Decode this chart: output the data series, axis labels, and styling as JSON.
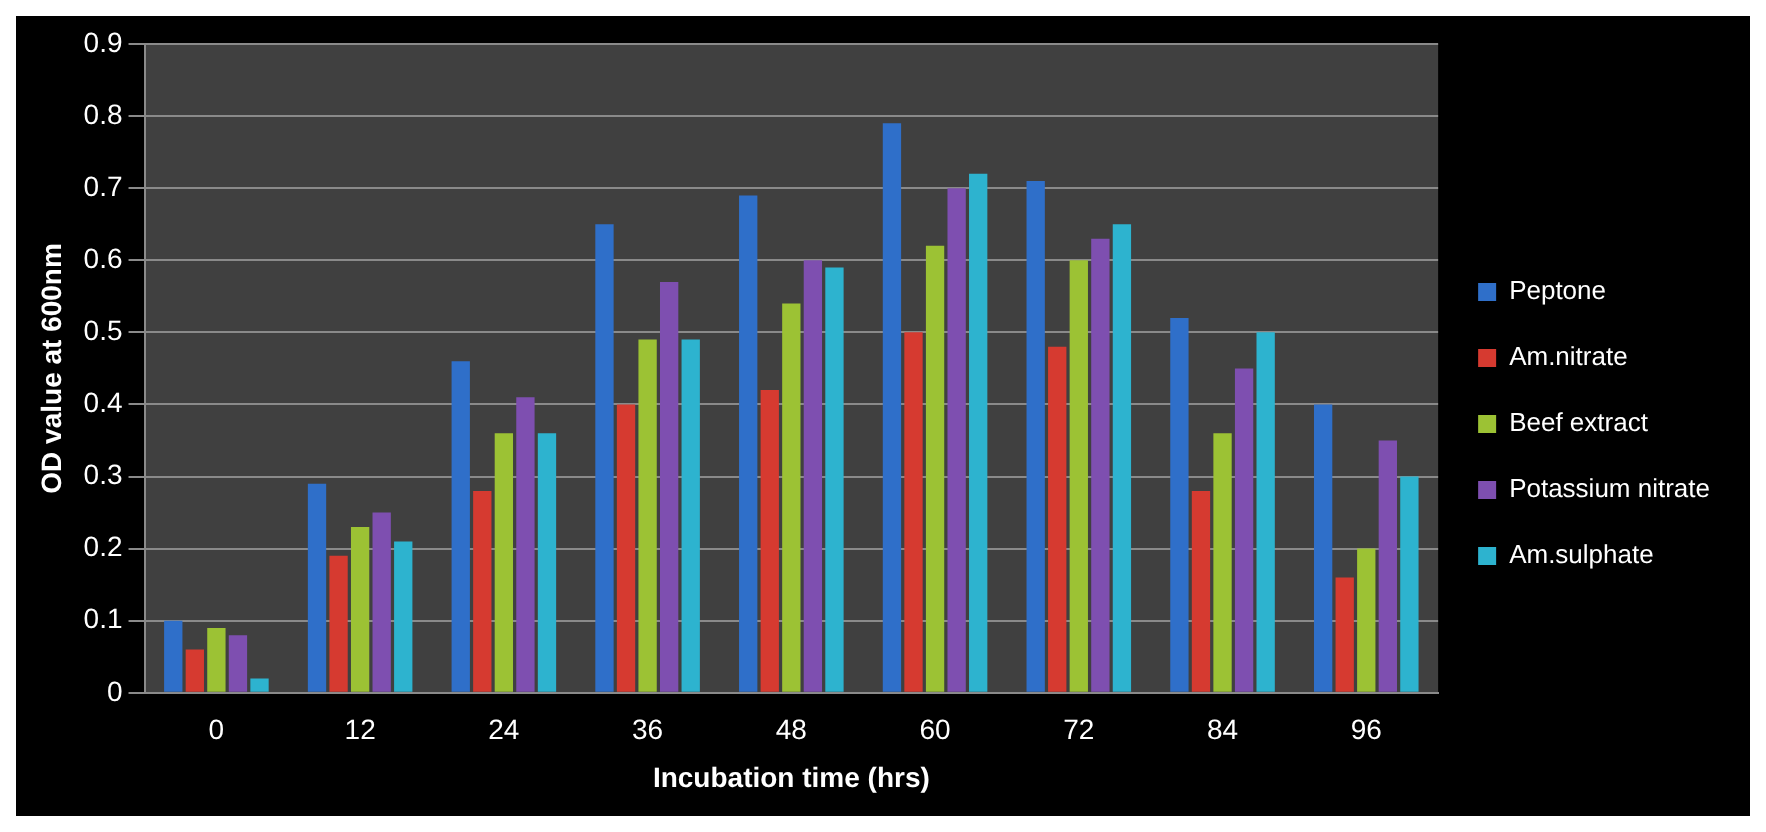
{
  "chart_data": {
    "type": "bar",
    "xlabel": "Incubation time (hrs)",
    "ylabel": "OD value at 600nm",
    "categories": [
      "0",
      "12",
      "24",
      "36",
      "48",
      "60",
      "72",
      "84",
      "96"
    ],
    "series": [
      {
        "name": "Peptone",
        "color": "#2f6fc9",
        "values": [
          0.1,
          0.29,
          0.46,
          0.65,
          0.69,
          0.79,
          0.71,
          0.52,
          0.4
        ]
      },
      {
        "name": "Am.nitrate",
        "color": "#d63a30",
        "values": [
          0.06,
          0.19,
          0.28,
          0.4,
          0.42,
          0.5,
          0.48,
          0.28,
          0.16
        ]
      },
      {
        "name": "Beef extract",
        "color": "#9cc234",
        "values": [
          0.09,
          0.23,
          0.36,
          0.49,
          0.54,
          0.62,
          0.6,
          0.36,
          0.2
        ]
      },
      {
        "name": "Potassium nitrate",
        "color": "#7e4fb0",
        "values": [
          0.08,
          0.25,
          0.41,
          0.57,
          0.6,
          0.7,
          0.63,
          0.45,
          0.35
        ]
      },
      {
        "name": "Am.sulphate",
        "color": "#2db3cf",
        "values": [
          0.02,
          0.21,
          0.36,
          0.49,
          0.59,
          0.72,
          0.65,
          0.5,
          0.3
        ]
      }
    ],
    "ylim": [
      0,
      0.9
    ],
    "yticks": [
      0,
      0.1,
      0.2,
      0.3,
      0.4,
      0.5,
      0.6,
      0.7,
      0.8,
      0.9
    ],
    "grid": "y",
    "legend": "right"
  }
}
